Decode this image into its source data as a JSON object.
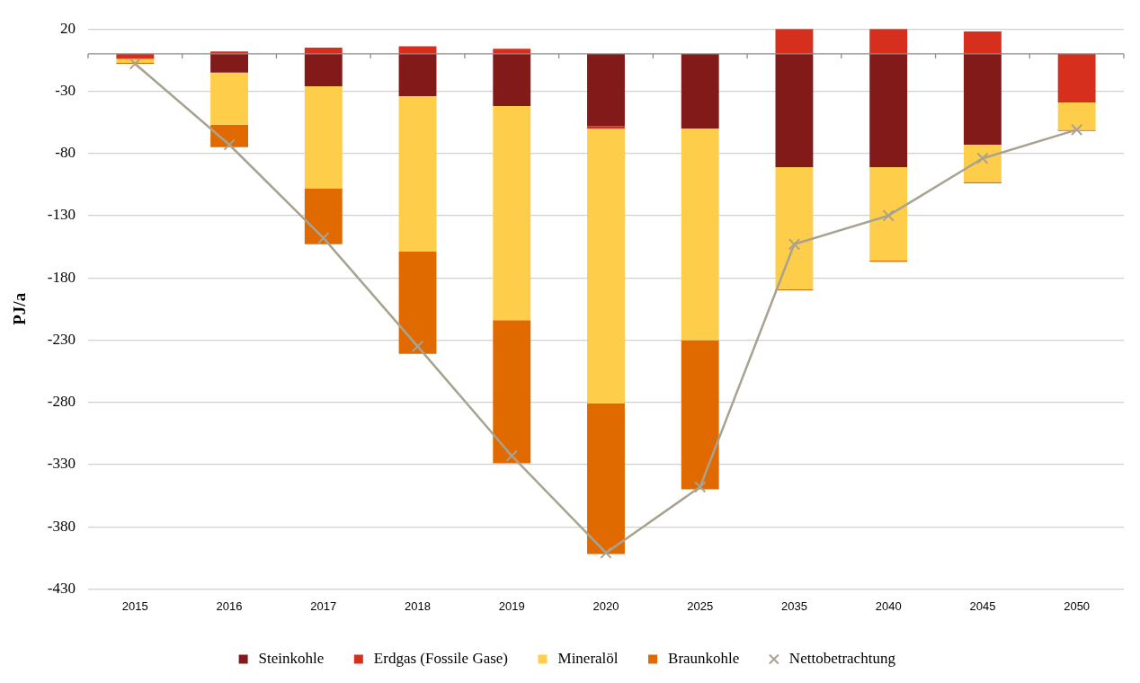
{
  "chart_data": {
    "type": "bar",
    "stacked": true,
    "ylabel": "PJ/a",
    "categories": [
      "2015",
      "2016",
      "2017",
      "2018",
      "2019",
      "2020",
      "2025",
      "2035",
      "2040",
      "2045",
      "2050"
    ],
    "series": [
      {
        "name": "Steinkohle",
        "color": "#831a1a",
        "values": [
          null,
          -15,
          -26,
          -34,
          -42,
          -58,
          -60,
          -91,
          -91,
          -73,
          0
        ]
      },
      {
        "name": "Erdgas (Fossile Gase)",
        "color": "#d62f1e",
        "values": [
          -4,
          2,
          5,
          6,
          4,
          -2,
          null,
          20,
          20,
          18,
          -39
        ]
      },
      {
        "name": "Mineralöl",
        "color": "#fecd49",
        "values": [
          -3,
          -42,
          -82,
          -125,
          -172,
          -221,
          -170,
          -98,
          -75,
          -30,
          -22
        ]
      },
      {
        "name": "Braunkohle",
        "color": "#e06a00",
        "values": [
          -1,
          -18,
          -45,
          -82,
          -115,
          -121,
          -120,
          -1,
          -1,
          -1,
          -1
        ]
      },
      {
        "name": "Nettobetrachtung",
        "type": "line",
        "color": "#a8a391",
        "marker": "cross",
        "values": [
          -8,
          -73,
          -148,
          -235,
          -323,
          -401,
          -348,
          -153,
          -130,
          -84,
          -61
        ]
      }
    ],
    "ylim": [
      -430,
      20
    ],
    "yticks": [
      20,
      -30,
      -80,
      -130,
      -180,
      -230,
      -280,
      -330,
      -380,
      -430
    ],
    "grid": "y",
    "legend": "bottom"
  }
}
